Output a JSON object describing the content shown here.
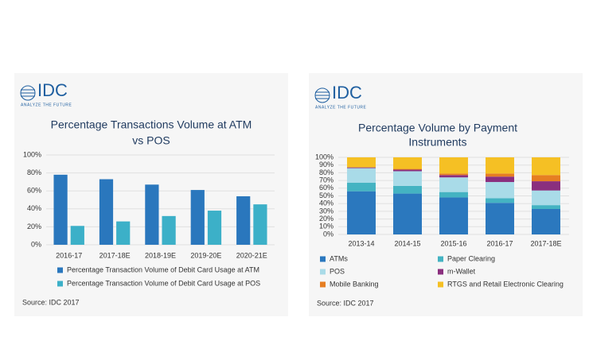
{
  "chart_data": [
    {
      "type": "bar",
      "brand": "IDC",
      "tagline": "ANALYZE THE FUTURE",
      "title": [
        "Percentage Transactions Volume at ATM",
        "vs POS"
      ],
      "categories": [
        "2016-17",
        "2017-18E",
        "2018-19E",
        "2019-20E",
        "2020-21E"
      ],
      "series": [
        {
          "name": "Percentage Transaction Volume of Debit Card Usage at ATM",
          "color": "#2a77bd",
          "values": [
            78,
            73,
            67,
            61,
            54
          ]
        },
        {
          "name": "Percentage Transaction Volume of Debit Card Usage at POS",
          "color": "#3cb0c8",
          "values": [
            21,
            26,
            32,
            38,
            45
          ]
        }
      ],
      "ylim": [
        0,
        100
      ],
      "yticks": [
        {
          "value": 0,
          "label": "0%"
        },
        {
          "value": 20,
          "label": "20%"
        },
        {
          "value": 40,
          "label": "40%"
        },
        {
          "value": 60,
          "label": "60%"
        },
        {
          "value": 80,
          "label": "80%"
        },
        {
          "value": 100,
          "label": "100%"
        }
      ],
      "grid": true,
      "source": "Source: IDC 2017"
    },
    {
      "type": "stacked_bar",
      "brand": "IDC",
      "tagline": "ANALYZE THE FUTURE",
      "title": [
        "Percentage Volume by Payment",
        "Instruments"
      ],
      "categories": [
        "2013-14",
        "2014-15",
        "2015-16",
        "2016-17",
        "2017-18E"
      ],
      "series": [
        {
          "name": "ATMs",
          "color": "#2b78be",
          "values": [
            56,
            53,
            48,
            41,
            33
          ]
        },
        {
          "name": "Paper Clearing",
          "color": "#44b3c2",
          "values": [
            11,
            10,
            7,
            6,
            5
          ]
        },
        {
          "name": "POS",
          "color": "#a9dbe8",
          "values": [
            19,
            19,
            19,
            21,
            19
          ]
        },
        {
          "name": "m-Wallet",
          "color": "#8a2f7e",
          "values": [
            1,
            2,
            3,
            7,
            12
          ]
        },
        {
          "name": "Mobile Banking",
          "color": "#e67e22",
          "values": [
            0,
            1,
            2,
            4,
            8
          ]
        },
        {
          "name": "RTGS and Retail Electronic Clearing",
          "color": "#f5c024",
          "values": [
            13,
            15,
            21,
            21,
            23
          ]
        }
      ],
      "ylim": [
        0,
        100
      ],
      "yticks": [
        {
          "value": 0,
          "label": "0%"
        },
        {
          "value": 10,
          "label": "10%"
        },
        {
          "value": 20,
          "label": "20%"
        },
        {
          "value": 30,
          "label": "30%"
        },
        {
          "value": 40,
          "label": "40%"
        },
        {
          "value": 50,
          "label": "50%"
        },
        {
          "value": 60,
          "label": "60%"
        },
        {
          "value": 70,
          "label": "70%"
        },
        {
          "value": 80,
          "label": "80%"
        },
        {
          "value": 90,
          "label": "90%"
        },
        {
          "value": 100,
          "label": "100%"
        }
      ],
      "grid": true,
      "source": "Source: IDC 2017"
    }
  ]
}
